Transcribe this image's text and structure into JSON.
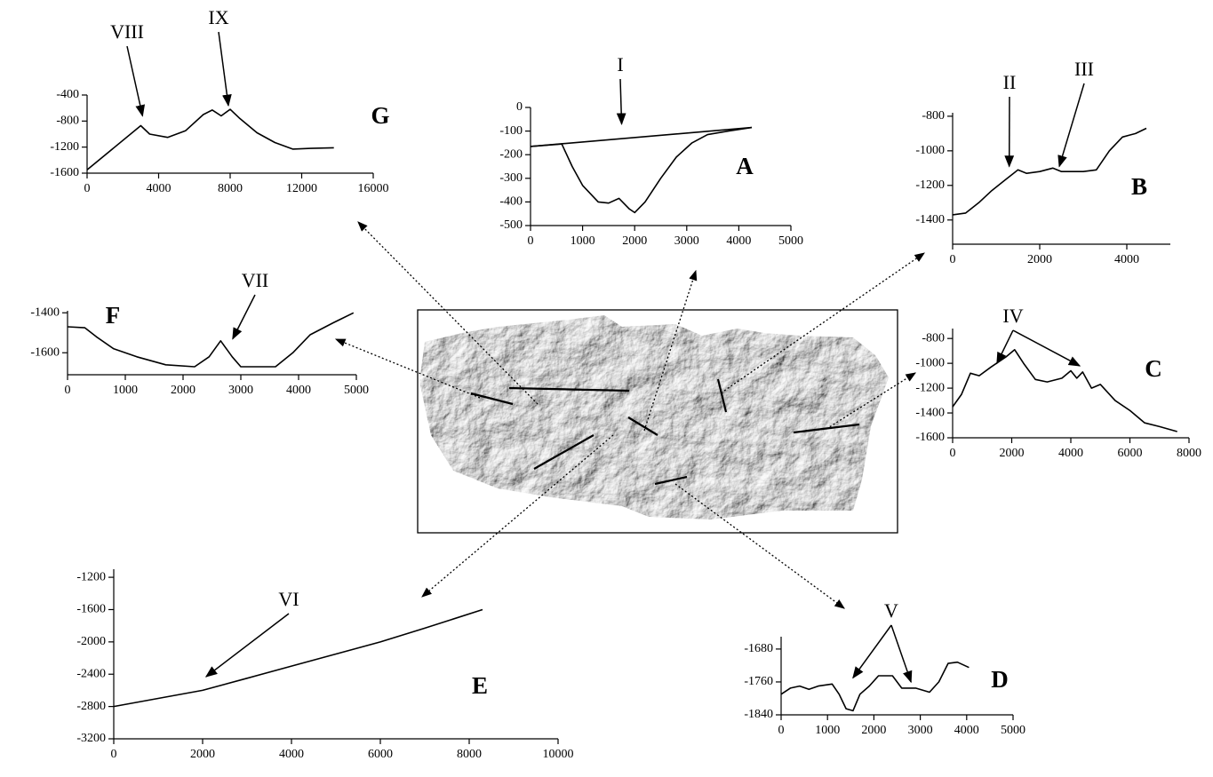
{
  "chart_data": [
    {
      "type": "line",
      "title": "A",
      "color": "#000000",
      "xlim": [
        0,
        5000
      ],
      "ylim": [
        -500,
        0
      ],
      "xticks": [
        0,
        1000,
        2000,
        3000,
        4000,
        5000
      ],
      "yticks": [
        0,
        -100,
        -200,
        -300,
        -400,
        -500
      ],
      "series": [
        {
          "x": [
            0,
            4250
          ],
          "values": [
            -165,
            -85
          ]
        },
        {
          "x": [
            0,
            600,
            800,
            1000,
            1300,
            1500,
            1700,
            1900,
            2000,
            2200,
            2500,
            2800,
            3100,
            3400,
            3800,
            4250
          ],
          "values": [
            -165,
            -155,
            -250,
            -330,
            -400,
            -405,
            -385,
            -430,
            -445,
            -400,
            -300,
            -210,
            -150,
            -115,
            -100,
            -85
          ]
        }
      ],
      "annotations": [
        {
          "text": "I",
          "x": [
            1750
          ],
          "y": [
            -70
          ]
        }
      ]
    },
    {
      "type": "line",
      "title": "B",
      "color": "#000000",
      "xlim": [
        0,
        5000
      ],
      "ylim": [
        -1540,
        -780
      ],
      "xticks": [
        0,
        2000,
        4000
      ],
      "yticks": [
        -800,
        -1000,
        -1200,
        -1400
      ],
      "series": [
        {
          "x": [
            0,
            300,
            600,
            900,
            1200,
            1500,
            1700,
            2000,
            2300,
            2500,
            3000,
            3300,
            3600,
            3900,
            4200,
            4450
          ],
          "values": [
            -1370,
            -1360,
            -1300,
            -1230,
            -1170,
            -1110,
            -1130,
            -1120,
            -1100,
            -1120,
            -1120,
            -1110,
            -1000,
            -920,
            -900,
            -870
          ]
        }
      ],
      "annotations": [
        {
          "text": "II",
          "x": [
            1300
          ],
          "y": [
            -1090
          ]
        },
        {
          "text": "III",
          "x": [
            2450
          ],
          "y": [
            -1090
          ]
        }
      ]
    },
    {
      "type": "line",
      "title": "C",
      "color": "#000000",
      "xlim": [
        0,
        8000
      ],
      "ylim": [
        -1600,
        -720
      ],
      "xticks": [
        0,
        2000,
        4000,
        6000,
        8000
      ],
      "yticks": [
        -800,
        -1000,
        -1200,
        -1400,
        -1600
      ],
      "series": [
        {
          "x": [
            0,
            300,
            600,
            900,
            1300,
            1800,
            2100,
            2400,
            2800,
            3200,
            3700,
            4000,
            4200,
            4400,
            4700,
            5000,
            5500,
            6000,
            6500,
            7000,
            7600
          ],
          "values": [
            -1350,
            -1250,
            -1080,
            -1100,
            -1030,
            -950,
            -890,
            -1000,
            -1130,
            -1150,
            -1120,
            -1060,
            -1120,
            -1070,
            -1200,
            -1170,
            -1300,
            -1380,
            -1480,
            -1510,
            -1550
          ]
        }
      ],
      "annotations": [
        {
          "text": "IV",
          "x": [
            1500,
            4300
          ],
          "y": [
            -1000,
            -1020
          ]
        }
      ]
    },
    {
      "type": "line",
      "title": "D",
      "color": "#000000",
      "xlim": [
        0,
        5000
      ],
      "ylim": [
        -1840,
        -1650
      ],
      "xticks": [
        0,
        1000,
        2000,
        3000,
        4000,
        5000
      ],
      "yticks": [
        -1680,
        -1760,
        -1840
      ],
      "series": [
        {
          "x": [
            0,
            200,
            400,
            600,
            800,
            1100,
            1250,
            1400,
            1550,
            1700,
            1900,
            2100,
            2400,
            2600,
            2900,
            3200,
            3400,
            3600,
            3800,
            4050
          ],
          "values": [
            -1790,
            -1775,
            -1770,
            -1778,
            -1770,
            -1765,
            -1790,
            -1825,
            -1830,
            -1790,
            -1770,
            -1745,
            -1745,
            -1775,
            -1775,
            -1785,
            -1760,
            -1715,
            -1712,
            -1725
          ]
        }
      ],
      "annotations": [
        {
          "text": "V",
          "x": [
            1550,
            2800
          ],
          "y": [
            -1750,
            -1760
          ]
        }
      ]
    },
    {
      "type": "line",
      "title": "E",
      "color": "#000000",
      "xlim": [
        0,
        10000
      ],
      "ylim": [
        -3200,
        -1100
      ],
      "xticks": [
        0,
        2000,
        4000,
        6000,
        8000,
        10000
      ],
      "yticks": [
        -1200,
        -1600,
        -2000,
        -2400,
        -2800,
        -3200
      ],
      "series": [
        {
          "x": [
            0,
            1000,
            2000,
            3000,
            4000,
            5000,
            6000,
            7000,
            8300
          ],
          "values": [
            -2800,
            -2700,
            -2600,
            -2450,
            -2300,
            -2150,
            -2000,
            -1830,
            -1600
          ]
        }
      ],
      "annotations": [
        {
          "text": "VI",
          "x": [
            2080
          ],
          "y": [
            -2430
          ]
        }
      ]
    },
    {
      "type": "line",
      "title": "F",
      "color": "#000000",
      "xlim": [
        0,
        5000
      ],
      "ylim": [
        -1710,
        -1390
      ],
      "xticks": [
        0,
        1000,
        2000,
        3000,
        4000,
        5000
      ],
      "yticks": [
        -1400,
        -1600
      ],
      "series": [
        {
          "x": [
            0,
            300,
            500,
            800,
            1200,
            1700,
            2200,
            2450,
            2650,
            2850,
            3000,
            3600,
            3900,
            4200,
            4600,
            4950
          ],
          "values": [
            -1470,
            -1475,
            -1520,
            -1580,
            -1620,
            -1660,
            -1670,
            -1620,
            -1540,
            -1620,
            -1670,
            -1670,
            -1600,
            -1510,
            -1450,
            -1400
          ]
        }
      ],
      "annotations": [
        {
          "text": "VII",
          "x": [
            2860
          ],
          "y": [
            -1530
          ]
        }
      ]
    },
    {
      "type": "line",
      "title": "G",
      "color": "#000000",
      "xlim": [
        0,
        16000
      ],
      "ylim": [
        -1600,
        -400
      ],
      "xticks": [
        0,
        4000,
        8000,
        12000,
        16000
      ],
      "yticks": [
        -400,
        -800,
        -1200,
        -1600
      ],
      "series": [
        {
          "x": [
            0,
            3000,
            3500,
            4500,
            5500,
            6500,
            7000,
            7500,
            8000,
            8500,
            9500,
            10500,
            11500,
            12500,
            13800
          ],
          "values": [
            -1550,
            -870,
            -1000,
            -1050,
            -950,
            -700,
            -630,
            -720,
            -620,
            -750,
            -980,
            -1130,
            -1230,
            -1220,
            -1210
          ]
        }
      ],
      "annotations": [
        {
          "text": "VIII",
          "x": [
            3100
          ],
          "y": [
            -720
          ]
        },
        {
          "text": "IX",
          "x": [
            7900
          ],
          "y": [
            -560
          ]
        }
      ]
    }
  ]
}
